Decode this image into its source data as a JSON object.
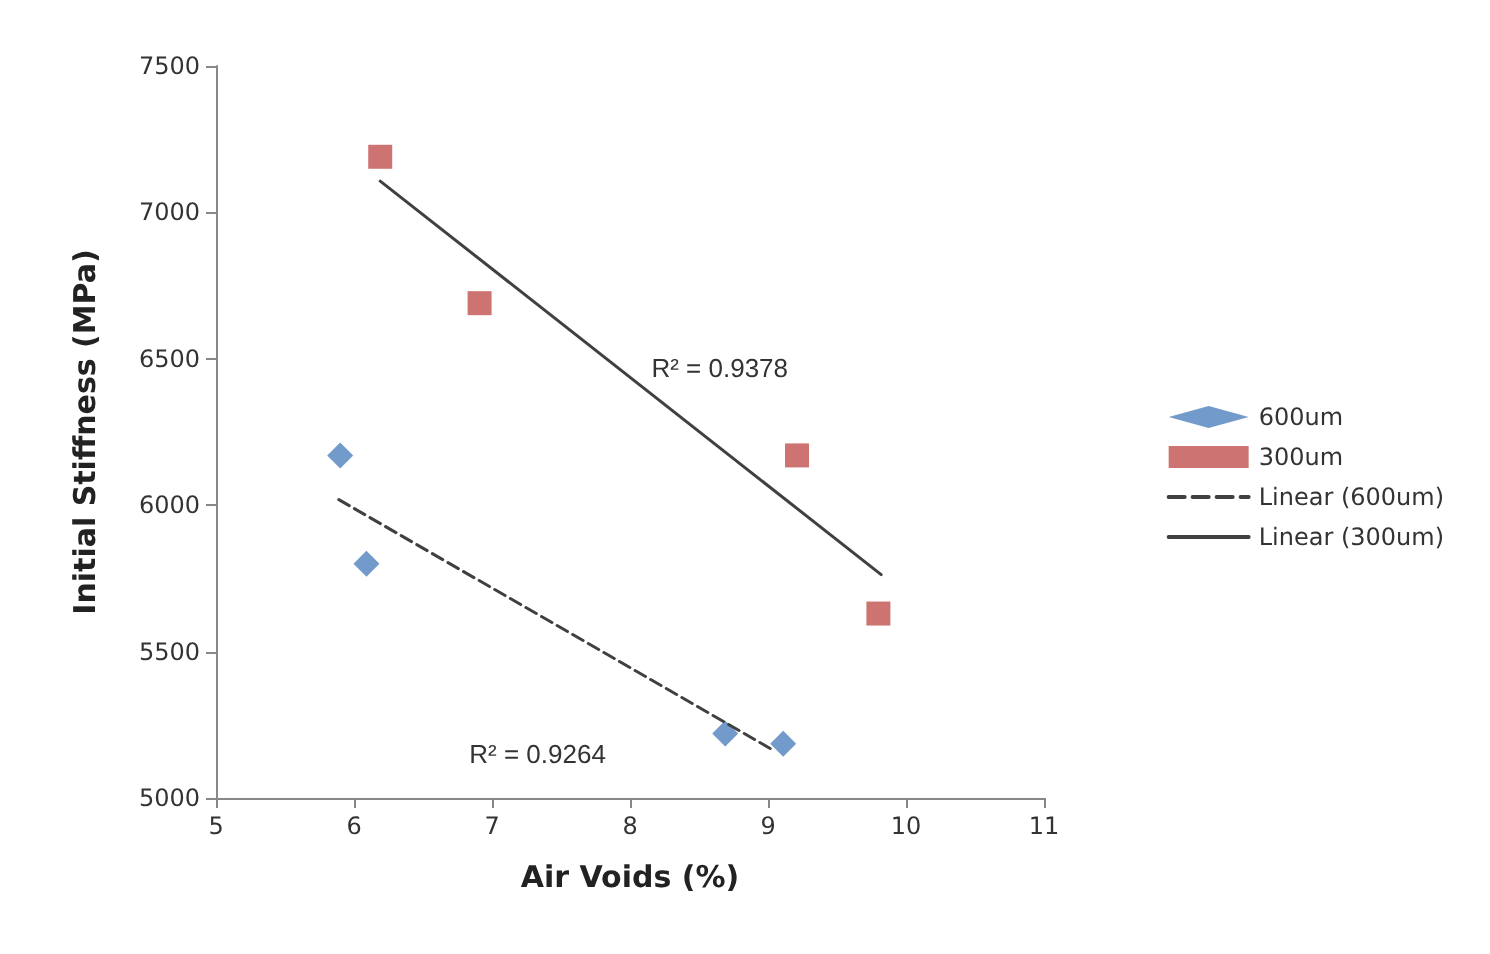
{
  "chart_data": {
    "type": "scatter",
    "xlabel": "Air Voids (%)",
    "ylabel": "Initial Stiffness (MPa)",
    "xlim": [
      5,
      11
    ],
    "ylim": [
      5000,
      7500
    ],
    "xticks": [
      5,
      6,
      7,
      8,
      9,
      10,
      11
    ],
    "yticks": [
      5000,
      5500,
      6000,
      6500,
      7000,
      7500
    ],
    "grid": false,
    "legend": "right",
    "series": [
      {
        "name": "600um",
        "color": "#4f81bd",
        "marker": "diamond",
        "x": [
          5.9,
          6.09,
          8.69,
          9.11
        ],
        "values": [
          6170,
          5800,
          5220,
          5185
        ]
      },
      {
        "name": "300um",
        "color": "#c0504d",
        "marker": "square",
        "x": [
          6.19,
          6.91,
          9.21,
          9.8
        ],
        "values": [
          7190,
          6690,
          6170,
          5630
        ]
      },
      {
        "name": "Linear (600um)",
        "type": "line",
        "color": "#404040",
        "line_style": "dashed",
        "marker": "none",
        "x": [
          5.89,
          9.05
        ],
        "values": [
          6019,
          5160
        ]
      },
      {
        "name": "Linear (300um)",
        "type": "line",
        "color": "#404040",
        "line_style": "solid",
        "marker": "none",
        "x": [
          6.19,
          9.82
        ],
        "values": [
          7107,
          5763
        ]
      }
    ],
    "annotations": [
      "R² = 0.9378",
      "R² = 0.9264"
    ]
  }
}
